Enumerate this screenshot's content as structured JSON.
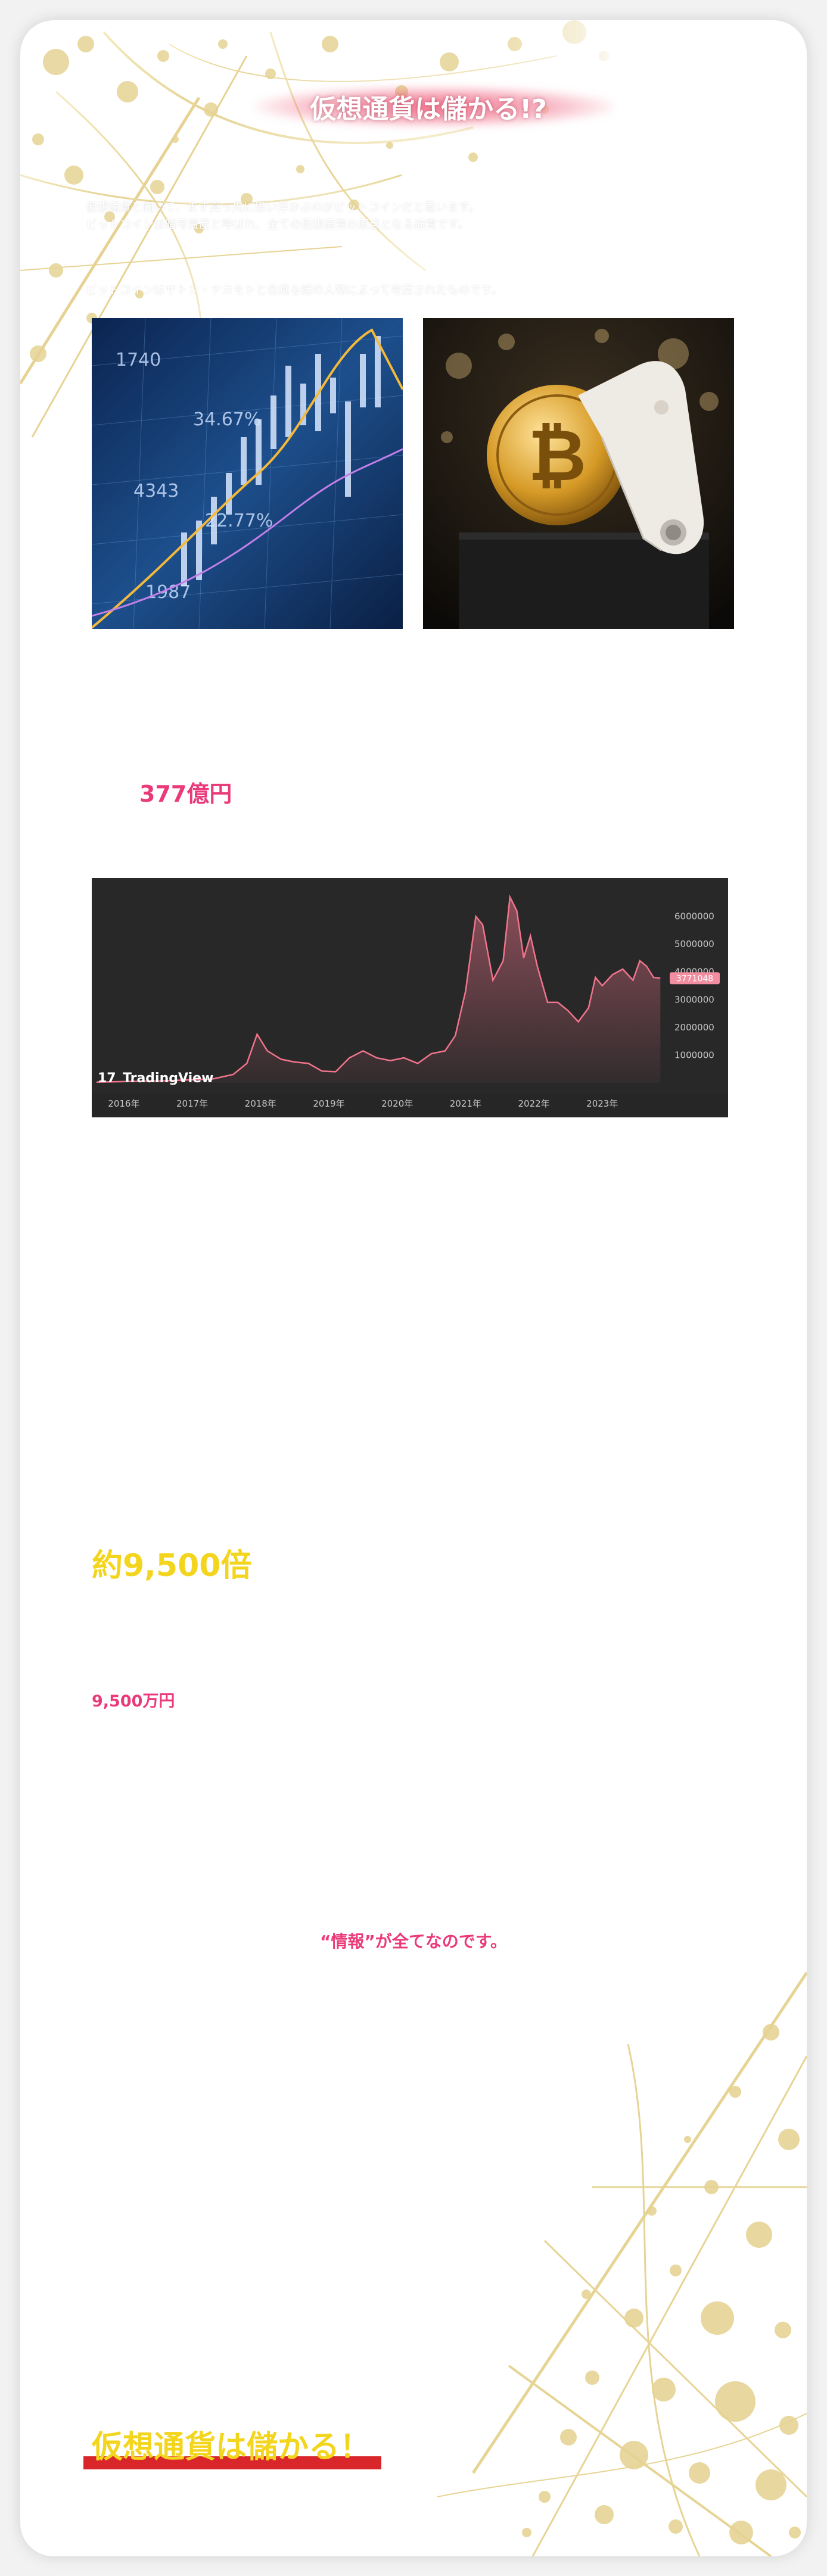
{
  "page": {
    "title": "仮想通貨は儲かる!?",
    "intro_lines": [
      "仮想通貨と聞いて、まず真っ先に思い浮かぶのがビットコインだと思います。",
      "ビットコインは暗号資産と呼ばれ、全ての仮想通貨の原点となる通貨です。",
      "ビットコインはサトシ・ナカモトと名乗る謎の人物によって考案されたものです。"
    ],
    "images": {
      "left": "candlestick-chart-photo",
      "right": "bitcoin-coin-photo"
    },
    "highlight_377": "377億円",
    "highlight_9500x": "約9,500倍",
    "highlight_9500man": "9,500万円",
    "info_line": "“情報”が全てなのです。",
    "closing": "仮想通貨は儲かる！"
  },
  "colors": {
    "pink": "#ea3a7a",
    "yellow": "#f4d51d",
    "red": "#d9262b",
    "chart_bg": "#282828",
    "chart_line": "#f0748c"
  },
  "chart_data": {
    "type": "area",
    "source_label": "TradingView",
    "x_ticks": [
      "2016年",
      "2017年",
      "2018年",
      "2019年",
      "2020年",
      "2021年",
      "2022年",
      "2023年"
    ],
    "y_ticks": [
      1000000,
      2000000,
      3000000,
      4000000,
      5000000,
      6000000
    ],
    "ylim": [
      0,
      7000000
    ],
    "last_value_label": "3771048",
    "series": [
      {
        "x": [
          2015.6,
          2016.0,
          2016.5,
          2017.0,
          2017.3,
          2017.6,
          2017.8,
          2017.95,
          2018.1,
          2018.3,
          2018.5,
          2018.7,
          2018.9,
          2019.1,
          2019.3,
          2019.5,
          2019.7,
          2019.9,
          2020.1,
          2020.3,
          2020.5,
          2020.7,
          2020.85,
          2021.0,
          2021.15,
          2021.25,
          2021.4,
          2021.55,
          2021.65,
          2021.75,
          2021.85,
          2021.95,
          2022.05,
          2022.2,
          2022.35,
          2022.5,
          2022.65,
          2022.8,
          2022.9,
          2023.0,
          2023.15,
          2023.3,
          2023.45,
          2023.55,
          2023.65,
          2023.75,
          2023.85
        ],
        "values": [
          25000,
          45000,
          65000,
          110000,
          140000,
          300000,
          700000,
          1750000,
          1150000,
          850000,
          750000,
          700000,
          420000,
          400000,
          900000,
          1150000,
          900000,
          800000,
          900000,
          700000,
          1050000,
          1150000,
          1700000,
          3300000,
          6000000,
          5700000,
          3700000,
          4400000,
          6700000,
          6200000,
          4500000,
          5300000,
          4200000,
          2900000,
          2900000,
          2600000,
          2200000,
          2700000,
          3800000,
          3500000,
          3900000,
          4100000,
          3700000,
          4400000,
          4200000,
          3800000,
          3771048
        ]
      }
    ]
  }
}
